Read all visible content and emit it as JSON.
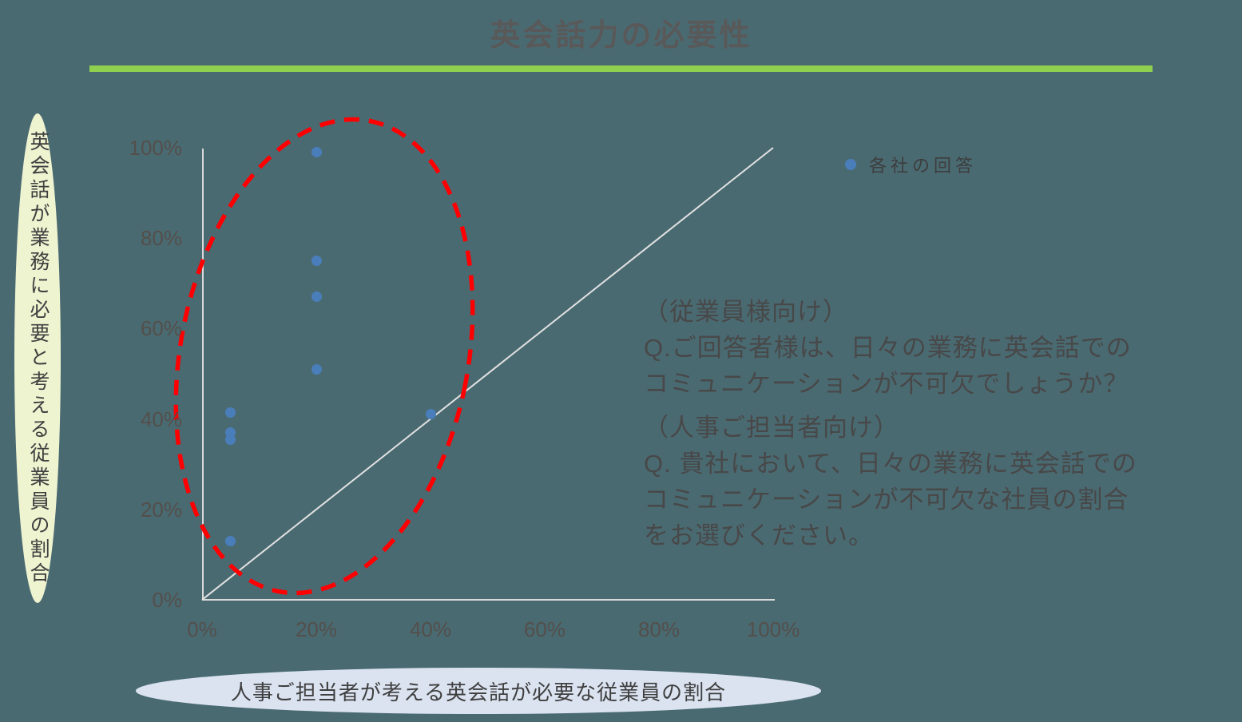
{
  "page": {
    "title": "英会話力の必要性"
  },
  "colors": {
    "background": "#4a6a72",
    "title_text": "#595959",
    "title_underline": "#8fd14f",
    "point": "#4a7ebb",
    "highlight_ellipse": "#ff0000",
    "axis_line": "#d9d9d9",
    "identity_line": "#e2e2e2",
    "tick_text": "#534f4b",
    "ylabel_bubble_fill": "#eef3d0",
    "xlabel_bubble_fill": "#dbe3f1"
  },
  "chart_data": {
    "type": "scatter",
    "title": "英会話力の必要性",
    "xlabel": "人事ご担当者が考える英会話が必要な従業員の割合",
    "ylabel": "英会話が業務に必要と考える従業員の割合",
    "legend": {
      "label": "各社の回答",
      "marker": "circle",
      "position": "top-right"
    },
    "xlim": [
      0,
      1
    ],
    "ylim": [
      0,
      1
    ],
    "x_ticks": [
      "0%",
      "20%",
      "40%",
      "60%",
      "80%",
      "100%"
    ],
    "y_ticks": [
      "0%",
      "20%",
      "40%",
      "60%",
      "80%",
      "100%"
    ],
    "grid": false,
    "points": [
      [
        0.2,
        0.99
      ],
      [
        0.2,
        0.75
      ],
      [
        0.2,
        0.67
      ],
      [
        0.2,
        0.51
      ],
      [
        0.05,
        0.415
      ],
      [
        0.05,
        0.37
      ],
      [
        0.05,
        0.355
      ],
      [
        0.05,
        0.13
      ],
      [
        0.4,
        0.41
      ]
    ],
    "identity_line": {
      "from": [
        0,
        0
      ],
      "to": [
        1,
        1
      ]
    },
    "annotation": "red dashed ellipse highlighting the cluster of responses above the identity line"
  },
  "qa_text": {
    "block1": [
      "（従業員様向け）",
      "Q.ご回答者様は、日々の業務に英会話での",
      "コミュニケーションが不可欠でしょうか？"
    ],
    "block2": [
      "（人事ご担当者向け）",
      "Q. 貴社において、日々の業務に英会話での",
      "コミュニケーションが不可欠な社員の割合",
      "をお選びください。"
    ]
  }
}
